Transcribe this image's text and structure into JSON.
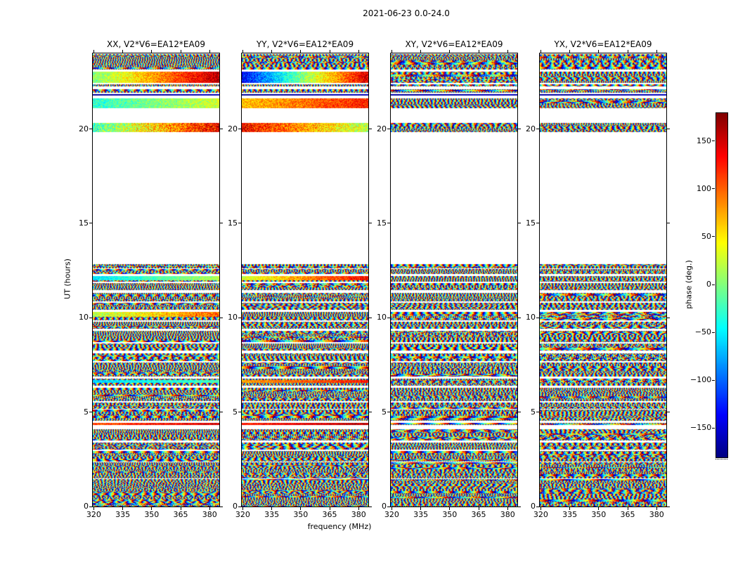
{
  "figure": {
    "title": "2021-06-23 0.0-24.0",
    "xlabel": "frequency (MHz)",
    "ylabel": "UT (hours)"
  },
  "chart_data": {
    "type": "heatmap",
    "title": "2021-06-23 0.0-24.0",
    "xlabel": "frequency (MHz)",
    "ylabel": "UT (hours)",
    "colormap": "jet",
    "panels": [
      {
        "pol": "XX",
        "title": "XX, V2*V6=EA12*EA09"
      },
      {
        "pol": "YY",
        "title": "YY, V2*V6=EA12*EA09"
      },
      {
        "pol": "XY",
        "title": "XY, V2*V6=EA12*EA09"
      },
      {
        "pol": "YX",
        "title": "YX, V2*V6=EA12*EA09"
      }
    ],
    "x_range": [
      319.5,
      385.0
    ],
    "x_ticks": [
      320,
      335,
      350,
      365,
      380
    ],
    "y_range": [
      0,
      24
    ],
    "y_ticks": [
      0,
      5,
      10,
      15,
      20
    ],
    "colorbar": {
      "label": "phase (deg.)",
      "vmin": -180,
      "vmax": 180,
      "ticks": [
        150,
        100,
        50,
        0,
        -50,
        -100,
        -150
      ]
    },
    "empty_time_interval_hours": [
      12.85,
      19.8
    ],
    "filled_time_intervals_hours": [
      [
        0.0,
        1.45
      ],
      [
        1.5,
        2.35
      ],
      [
        2.4,
        2.95
      ],
      [
        3.0,
        3.4
      ],
      [
        3.5,
        4.1
      ],
      [
        4.3,
        4.42
      ],
      [
        4.55,
        5.12
      ],
      [
        5.18,
        5.52
      ],
      [
        5.58,
        6.3
      ],
      [
        6.4,
        6.78
      ],
      [
        6.88,
        7.62
      ],
      [
        7.72,
        8.12
      ],
      [
        8.25,
        8.62
      ],
      [
        8.72,
        9.32
      ],
      [
        9.42,
        9.78
      ],
      [
        9.85,
        10.32
      ],
      [
        10.42,
        10.78
      ],
      [
        10.85,
        11.32
      ],
      [
        11.45,
        11.82
      ],
      [
        11.92,
        12.22
      ],
      [
        12.3,
        12.56
      ],
      [
        12.62,
        12.82
      ],
      [
        19.82,
        20.32
      ],
      [
        21.1,
        21.62
      ],
      [
        21.75,
        21.86
      ],
      [
        21.92,
        22.12
      ],
      [
        22.25,
        22.36
      ],
      [
        22.45,
        23.05
      ],
      [
        23.15,
        23.98
      ]
    ],
    "coherent_bands": [
      {
        "panel": 0,
        "t0": 19.82,
        "t1": 20.3,
        "v0": 0.45,
        "v1": 0.9,
        "noise": 0.3
      },
      {
        "panel": 0,
        "t0": 21.1,
        "t1": 21.62,
        "v0": 0.42,
        "v1": 0.58,
        "noise": 0.18
      },
      {
        "panel": 0,
        "t0": 22.45,
        "t1": 23.05,
        "v0": 0.5,
        "v1": 0.95,
        "noise": 0.18
      },
      {
        "panel": 0,
        "t0": 12.0,
        "t1": 12.22,
        "v0": 0.35,
        "v1": 0.55,
        "noise": 0.15
      },
      {
        "panel": 0,
        "t0": 10.05,
        "t1": 10.3,
        "v0": 0.55,
        "v1": 0.78,
        "noise": 0.22
      },
      {
        "panel": 0,
        "t0": 6.55,
        "t1": 6.7,
        "v0": 0.33,
        "v1": 0.45,
        "noise": 0.12
      },
      {
        "panel": 0,
        "t0": 4.3,
        "t1": 4.42,
        "v0": 0.8,
        "v1": 0.92,
        "noise": 0.15
      },
      {
        "panel": 1,
        "t0": 19.82,
        "t1": 20.3,
        "v0": 0.88,
        "v1": 0.55,
        "noise": 0.25
      },
      {
        "panel": 1,
        "t0": 21.1,
        "t1": 21.62,
        "v0": 0.68,
        "v1": 0.85,
        "noise": 0.18
      },
      {
        "panel": 1,
        "t0": 22.45,
        "t1": 23.05,
        "v0": 0.12,
        "v1": 0.92,
        "noise": 0.2
      },
      {
        "panel": 1,
        "t0": 12.0,
        "t1": 12.22,
        "v0": 0.58,
        "v1": 0.88,
        "noise": 0.18
      },
      {
        "panel": 1,
        "t0": 6.55,
        "t1": 6.7,
        "v0": 0.72,
        "v1": 0.85,
        "noise": 0.12
      },
      {
        "panel": 1,
        "t0": 4.3,
        "t1": 4.42,
        "v0": 0.85,
        "v1": 0.95,
        "noise": 0.12
      },
      {
        "panel": 0,
        "t0": 21.75,
        "t1": 21.86,
        "v0": 0.03,
        "v1": 0.06,
        "noise": 0.06
      },
      {
        "panel": 1,
        "t0": 21.75,
        "t1": 21.86,
        "v0": 0.03,
        "v1": 0.06,
        "noise": 0.06
      },
      {
        "panel": 2,
        "t0": 21.75,
        "t1": 21.86,
        "v0": 0.03,
        "v1": 0.06,
        "noise": 0.06
      },
      {
        "panel": 3,
        "t0": 21.75,
        "t1": 21.86,
        "v0": 0.03,
        "v1": 0.06,
        "noise": 0.06
      }
    ]
  }
}
